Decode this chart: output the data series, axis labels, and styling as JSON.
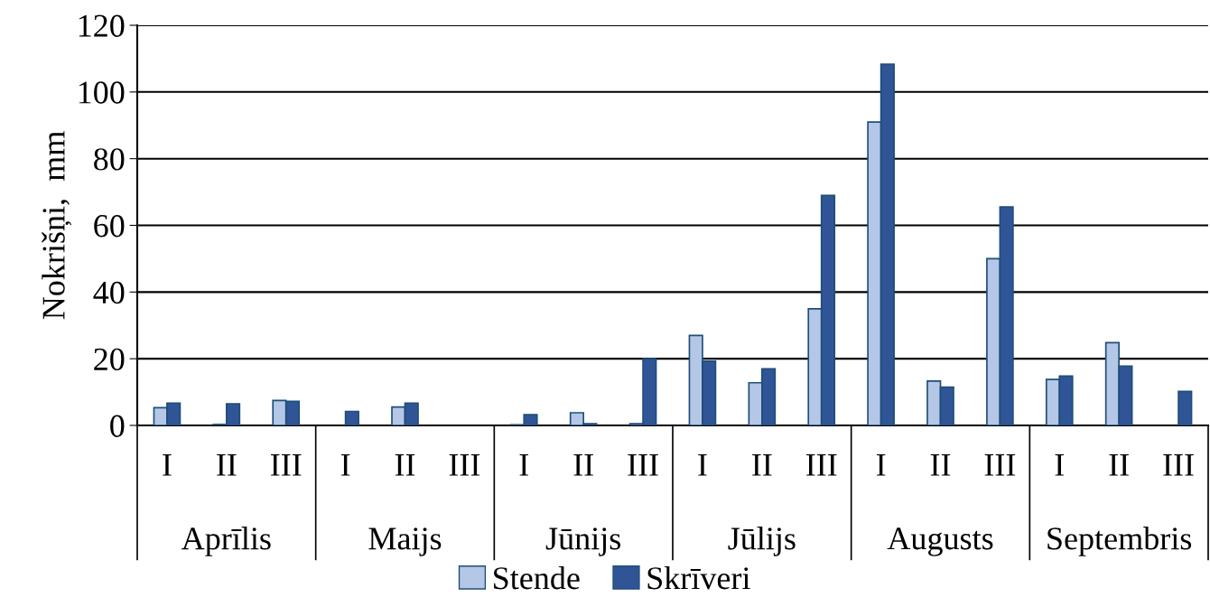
{
  "chart_data": {
    "type": "bar",
    "ylabel": "Nokrišņi,  mm",
    "categories": [
      "I",
      "II",
      "III",
      "I",
      "II",
      "III",
      "I",
      "II",
      "III",
      "I",
      "II",
      "III",
      "I",
      "II",
      "III",
      "I",
      "II",
      "III"
    ],
    "annotations": [
      "Aprīlis",
      "Maijs",
      "Jūnijs",
      "Jūlijs",
      "Augusts",
      "Septembris"
    ],
    "series": [
      {
        "name": "Stende",
        "color": "#b4c7e7",
        "values": [
          5.3,
          0.3,
          7.5,
          0,
          5.5,
          0,
          0.2,
          3.8,
          0.5,
          27,
          12.8,
          35,
          91,
          13.3,
          50,
          13.8,
          24.8,
          0
        ]
      },
      {
        "name": "Skrīveri",
        "color": "#2f5597",
        "values": [
          6.7,
          6.5,
          7.2,
          4.2,
          6.7,
          0,
          3.2,
          0.5,
          20,
          19.3,
          17,
          69,
          108.3,
          11.5,
          65.5,
          14.8,
          17.8,
          10.2
        ]
      }
    ],
    "ylim": [
      0,
      120
    ],
    "yticks": [
      0,
      20,
      40,
      60,
      80,
      100,
      120
    ],
    "grid": "y",
    "legend": "bottom"
  }
}
